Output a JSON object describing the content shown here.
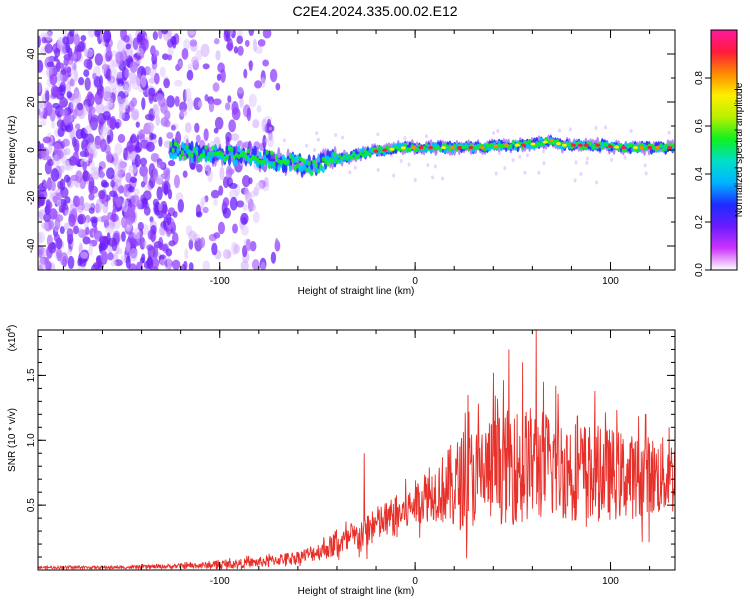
{
  "title": "C2E4.2024.335.00.02.E12",
  "colors": {
    "snr_line": "#e8302a",
    "cloud": "#7a2cf0",
    "colorbar": [
      "#ffffff",
      "#cc33ff",
      "#6a1cff",
      "#1d2cff",
      "#00b4ff",
      "#00e0c8",
      "#10f020",
      "#b8f000",
      "#ffef00",
      "#ff8a00",
      "#ff1a3c",
      "#ff1aa0"
    ]
  },
  "chart_data": [
    {
      "type": "heatmap",
      "title": "",
      "xlabel": "Height of straight line (km)",
      "ylabel": "Frequency (Hz)",
      "xlim": [
        -193,
        133
      ],
      "ylim": [
        -50,
        50
      ],
      "xticks": [
        -100,
        0,
        100
      ],
      "yticks": [
        -40,
        -20,
        0,
        20,
        40
      ],
      "colorbar": {
        "label": "Normalized spectral amplitude",
        "range": [
          0,
          1
        ],
        "ticks": [
          "0.0",
          "0.2",
          "0.4",
          "0.6",
          "0.8"
        ]
      },
      "ridge": {
        "x": [
          -125,
          -115,
          -105,
          -95,
          -85,
          -75,
          -65,
          -55,
          -45,
          -35,
          -25,
          -15,
          -5,
          5,
          15,
          25,
          35,
          45,
          55,
          65,
          70,
          75,
          85,
          95,
          105,
          115,
          125,
          133
        ],
        "y": [
          0,
          -1,
          -2,
          -2,
          -3,
          -4,
          -5,
          -7,
          -5,
          -3,
          -1,
          0,
          1,
          1,
          1,
          1,
          1,
          2,
          2,
          3,
          4,
          2,
          2,
          2,
          1,
          1,
          1,
          1
        ]
      }
    },
    {
      "type": "line",
      "title": "",
      "xlabel": "Height of straight line (km)",
      "ylabel": "SNR (10 * v/v)",
      "axis_multiplier": "(x10",
      "axis_multiplier_exponent": "4",
      "xlim": [
        -193,
        133
      ],
      "ylim": [
        0,
        1.85
      ],
      "xticks": [
        -100,
        0,
        100
      ],
      "yticks": [
        0.5,
        1.0,
        1.5
      ],
      "envelope": {
        "x": [
          -193,
          -150,
          -120,
          -100,
          -80,
          -60,
          -50,
          -40,
          -30,
          -25,
          -20,
          -15,
          -10,
          -5,
          0,
          10,
          20,
          30,
          40,
          50,
          60,
          70,
          80,
          90,
          100,
          110,
          120,
          133
        ],
        "base": [
          0.02,
          0.02,
          0.03,
          0.04,
          0.06,
          0.1,
          0.14,
          0.2,
          0.25,
          0.3,
          0.35,
          0.38,
          0.42,
          0.45,
          0.52,
          0.6,
          0.65,
          0.72,
          0.78,
          0.8,
          0.82,
          0.8,
          0.78,
          0.75,
          0.74,
          0.72,
          0.72,
          0.72
        ],
        "amp": [
          0.01,
          0.012,
          0.02,
          0.03,
          0.04,
          0.05,
          0.07,
          0.1,
          0.12,
          0.15,
          0.14,
          0.15,
          0.16,
          0.16,
          0.17,
          0.22,
          0.35,
          0.4,
          0.42,
          0.45,
          0.45,
          0.42,
          0.4,
          0.38,
          0.36,
          0.33,
          0.32,
          0.3
        ]
      },
      "peaks": [
        {
          "x": -26,
          "y": 0.9
        },
        {
          "x": 27,
          "y": 1.35
        },
        {
          "x": 40,
          "y": 1.52
        },
        {
          "x": 48,
          "y": 1.7
        },
        {
          "x": 55,
          "y": 1.6
        },
        {
          "x": 62,
          "y": 1.85
        },
        {
          "x": 72,
          "y": 1.42
        },
        {
          "x": 92,
          "y": 1.38
        },
        {
          "x": 118,
          "y": 1.2
        },
        {
          "x": 130,
          "y": 1.1
        }
      ]
    }
  ]
}
